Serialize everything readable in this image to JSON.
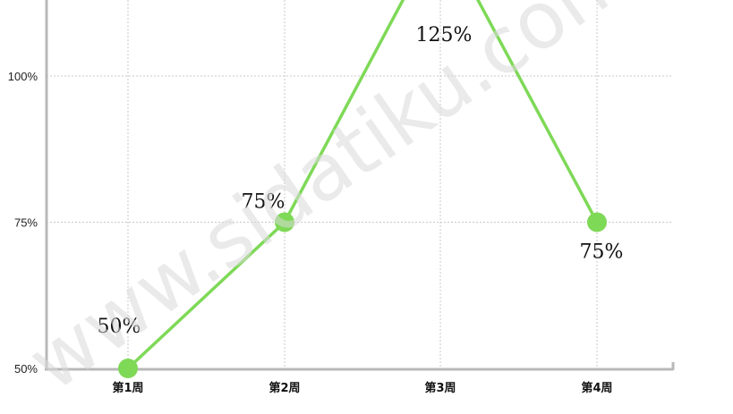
{
  "chart_data": {
    "type": "line",
    "categories": [
      "第1周",
      "第2周",
      "第3周",
      "第4周"
    ],
    "values": [
      50,
      75,
      125,
      75
    ],
    "data_labels": [
      "50%",
      "75%",
      "125%",
      "75%"
    ],
    "y_ticks": [
      "50%",
      "75%",
      "100%"
    ],
    "y_tick_values": [
      50,
      75,
      100
    ],
    "ylim": [
      50,
      112
    ],
    "grid": true,
    "series_color": "#7ed957",
    "title": "",
    "xlabel": "",
    "ylabel": ""
  },
  "watermark": "www.sidatiku.com"
}
